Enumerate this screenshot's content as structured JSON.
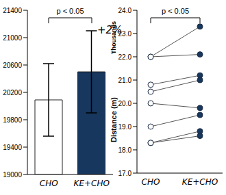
{
  "chart_data": [
    {
      "type": "bar",
      "categories": [
        "CHO",
        "KE+CHO"
      ],
      "values": [
        20090,
        20500
      ],
      "errors": [
        530,
        600
      ],
      "colors": [
        "#ffffff",
        "#17375e"
      ],
      "ylim": [
        19000,
        21400
      ],
      "yticks": [
        19000,
        19400,
        19800,
        20200,
        20600,
        21000,
        21400
      ],
      "annotations": [
        "p < 0.05",
        "+2%"
      ]
    },
    {
      "type": "line",
      "categories": [
        "CHO",
        "KE+CHO"
      ],
      "series": [
        {
          "values": [
            22.0,
            23.3
          ]
        },
        {
          "values": [
            22.0,
            22.1
          ]
        },
        {
          "values": [
            20.8,
            21.2
          ]
        },
        {
          "values": [
            20.5,
            21.0
          ]
        },
        {
          "values": [
            20.0,
            19.8
          ]
        },
        {
          "values": [
            19.0,
            19.5
          ]
        },
        {
          "values": [
            18.3,
            18.8
          ]
        },
        {
          "values": [
            18.3,
            18.6
          ]
        }
      ],
      "color": "#555555",
      "colors": [
        "#ffffff",
        "#17375e"
      ],
      "marker": "circle",
      "ylabel": "Distance (m)",
      "yunit": "Thousands",
      "ylim": [
        17.0,
        24.0
      ],
      "yticks": [
        {
          "value": 17.0,
          "label": "17.0"
        },
        {
          "value": 18.0,
          "label": "18.0"
        },
        {
          "value": 19.0,
          "label": "19.0"
        },
        {
          "value": 20.0,
          "label": "20.0"
        },
        {
          "value": 21.0,
          "label": "21.0"
        },
        {
          "value": 22.0,
          "label": "22.0"
        },
        {
          "value": 23.0,
          "label": "23.0"
        },
        {
          "value": 24.0,
          "label": "24.0"
        }
      ],
      "annotations": [
        "p < 0.05"
      ]
    }
  ]
}
